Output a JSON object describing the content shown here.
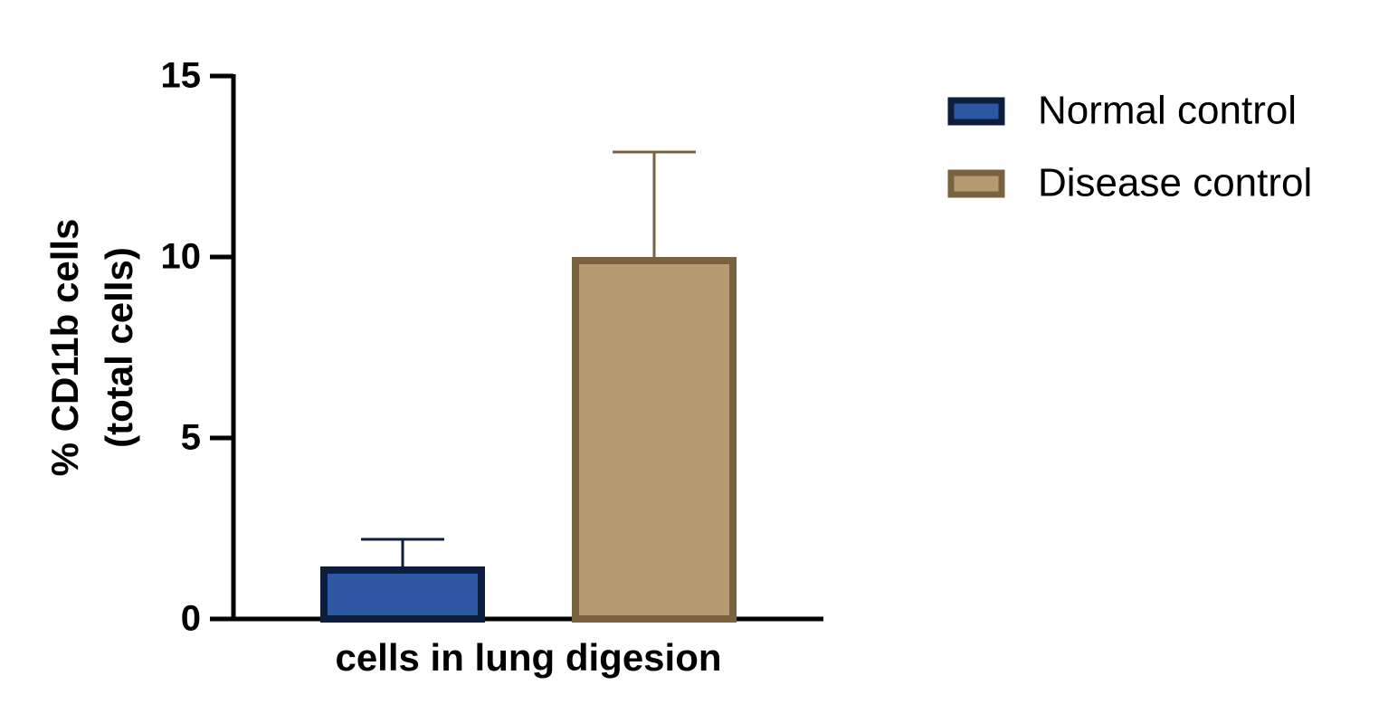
{
  "chart_data": {
    "type": "bar",
    "y_label": [
      "% CD11b cells",
      "(total cells)"
    ],
    "categories": [
      "cells in lung digesion"
    ],
    "series": [
      {
        "name": "Normal control",
        "color": "#2d56a3",
        "edge_color": "#0c1d3d",
        "values": [
          1.45
        ],
        "errors": [
          0.75
        ]
      },
      {
        "name": "Disease control",
        "color": "#b59c70",
        "edge_color": "#7a6140",
        "values": [
          10.0
        ],
        "errors": [
          2.9
        ]
      }
    ],
    "ylim": [
      0,
      15
    ],
    "yticks": [
      0,
      5,
      10,
      15
    ],
    "legend": "upper right"
  }
}
